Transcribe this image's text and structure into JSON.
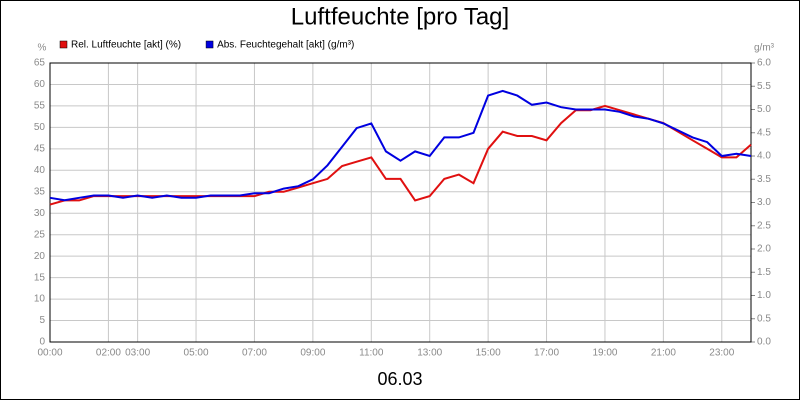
{
  "chart_data": {
    "type": "line",
    "title": "Luftfeuchte [pro Tag]",
    "x_label": "06.03",
    "y_label": "%",
    "y2_label": "g/m³",
    "x": [
      0,
      0.5,
      1,
      1.5,
      2,
      2.5,
      3,
      3.5,
      4,
      4.5,
      5,
      5.5,
      6,
      6.5,
      7,
      7.5,
      8,
      8.5,
      9,
      9.5,
      10,
      10.5,
      11,
      11.5,
      12,
      12.5,
      13,
      13.5,
      14,
      14.5,
      15,
      15.5,
      16,
      16.5,
      17,
      17.5,
      18,
      18.5,
      19,
      19.5,
      20,
      20.5,
      21,
      21.5,
      22,
      22.5,
      23,
      23.5,
      24
    ],
    "series": [
      {
        "name": "Rel. Luftfeuchte [akt] (%)",
        "color": "#e01010",
        "values": [
          32,
          33,
          33,
          34,
          34,
          34,
          34,
          34,
          34,
          34,
          34,
          34,
          34,
          34,
          34,
          35,
          35,
          36,
          37,
          38,
          41,
          42,
          43,
          38,
          38,
          33,
          34,
          38,
          39,
          37,
          45,
          49,
          48,
          48,
          47,
          51,
          54,
          54,
          55,
          54,
          53,
          52,
          51,
          49,
          47,
          45,
          43,
          43,
          46
        ]
      },
      {
        "name": "Abs. Feuchtegehalt [akt] (g/m³)",
        "color": "#0000e0",
        "axis": "y2",
        "values": [
          3.1,
          3.05,
          3.1,
          3.15,
          3.15,
          3.1,
          3.15,
          3.1,
          3.15,
          3.1,
          3.1,
          3.15,
          3.15,
          3.15,
          3.2,
          3.2,
          3.3,
          3.35,
          3.5,
          3.8,
          4.2,
          4.6,
          4.7,
          4.1,
          3.9,
          4.1,
          4.0,
          4.4,
          4.4,
          4.5,
          5.3,
          5.4,
          5.3,
          5.1,
          5.15,
          5.05,
          5.0,
          5.0,
          5.0,
          4.95,
          4.85,
          4.8,
          4.7,
          4.55,
          4.4,
          4.3,
          4.0,
          4.05,
          4.0
        ]
      }
    ],
    "xlim": [
      0,
      24
    ],
    "xticks": [
      {
        "value": 0,
        "label": "00:00"
      },
      {
        "value": 2,
        "label": "02:00"
      },
      {
        "value": 3,
        "label": "03:00"
      },
      {
        "value": 5,
        "label": "05:00"
      },
      {
        "value": 7,
        "label": "07:00"
      },
      {
        "value": 9,
        "label": "09:00"
      },
      {
        "value": 11,
        "label": "11:00"
      },
      {
        "value": 13,
        "label": "13:00"
      },
      {
        "value": 15,
        "label": "15:00"
      },
      {
        "value": 17,
        "label": "17:00"
      },
      {
        "value": 19,
        "label": "19:00"
      },
      {
        "value": 21,
        "label": "21:00"
      },
      {
        "value": 23,
        "label": "23:00"
      }
    ],
    "ylim": [
      0,
      65
    ],
    "yticks": [
      0,
      5,
      10,
      15,
      20,
      25,
      30,
      35,
      40,
      45,
      50,
      55,
      60,
      65
    ],
    "y2lim": [
      0,
      6
    ],
    "y2ticks": [
      {
        "value": 0,
        "label": "0.0"
      },
      0.5,
      {
        "value": 1,
        "label": "1.0"
      },
      1.5,
      {
        "value": 2,
        "label": "2.0"
      },
      2.5,
      {
        "value": 3,
        "label": "3.0"
      },
      3.5,
      {
        "value": 4,
        "label": "4.0"
      },
      4.5,
      {
        "value": 5,
        "label": "5.0"
      },
      5.5,
      {
        "value": 6,
        "label": "6.0"
      }
    ],
    "grid": true
  }
}
